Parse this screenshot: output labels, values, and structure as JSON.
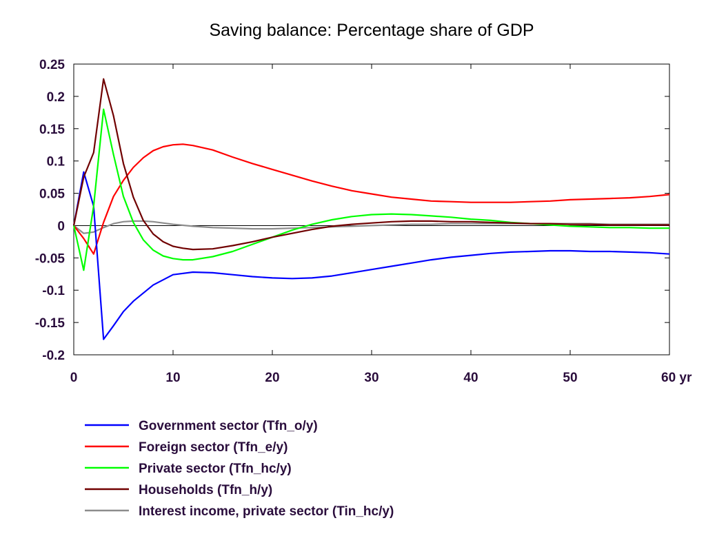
{
  "chart_data": {
    "type": "line",
    "title": "Saving balance: Percentage share of GDP",
    "xlabel": "",
    "ylabel": "",
    "xlim": [
      0,
      60
    ],
    "ylim": [
      -0.2,
      0.25
    ],
    "x_ticks": [
      {
        "value": 0,
        "label": "0"
      },
      {
        "value": 10,
        "label": "10"
      },
      {
        "value": 20,
        "label": "20"
      },
      {
        "value": 30,
        "label": "30"
      },
      {
        "value": 40,
        "label": "40"
      },
      {
        "value": 50,
        "label": "50"
      },
      {
        "value": 60,
        "label": "60 yr"
      }
    ],
    "y_ticks": [
      {
        "value": 0.25,
        "label": "0.25"
      },
      {
        "value": 0.2,
        "label": "0.2"
      },
      {
        "value": 0.15,
        "label": "0.15"
      },
      {
        "value": 0.1,
        "label": "0.1"
      },
      {
        "value": 0.05,
        "label": "0.05"
      },
      {
        "value": 0,
        "label": "0"
      },
      {
        "value": -0.05,
        "label": "-0.05"
      },
      {
        "value": -0.1,
        "label": "-0.1"
      },
      {
        "value": -0.15,
        "label": "-0.15"
      },
      {
        "value": -0.2,
        "label": "-0.2"
      }
    ],
    "zero_line": true,
    "grid": false,
    "legend_position": "bottom",
    "series": [
      {
        "name": "Government sector (Tfn_o/y)",
        "color": "#0000ff",
        "points": [
          [
            0,
            0
          ],
          [
            1,
            0.083
          ],
          [
            2,
            0.03
          ],
          [
            3,
            -0.176
          ],
          [
            4,
            -0.155
          ],
          [
            5,
            -0.133
          ],
          [
            6,
            -0.117
          ],
          [
            8,
            -0.092
          ],
          [
            10,
            -0.076
          ],
          [
            12,
            -0.072
          ],
          [
            14,
            -0.073
          ],
          [
            16,
            -0.076
          ],
          [
            18,
            -0.079
          ],
          [
            20,
            -0.081
          ],
          [
            22,
            -0.082
          ],
          [
            24,
            -0.081
          ],
          [
            26,
            -0.078
          ],
          [
            28,
            -0.073
          ],
          [
            30,
            -0.068
          ],
          [
            32,
            -0.063
          ],
          [
            34,
            -0.058
          ],
          [
            36,
            -0.053
          ],
          [
            38,
            -0.049
          ],
          [
            40,
            -0.046
          ],
          [
            42,
            -0.043
          ],
          [
            44,
            -0.041
          ],
          [
            46,
            -0.04
          ],
          [
            48,
            -0.039
          ],
          [
            50,
            -0.039
          ],
          [
            52,
            -0.04
          ],
          [
            54,
            -0.04
          ],
          [
            56,
            -0.041
          ],
          [
            58,
            -0.042
          ],
          [
            60,
            -0.044
          ]
        ]
      },
      {
        "name": "Foreign sector (Tfn_e/y)",
        "color": "#ff0000",
        "points": [
          [
            0,
            0
          ],
          [
            1,
            -0.02
          ],
          [
            2,
            -0.044
          ],
          [
            3,
            0.005
          ],
          [
            4,
            0.045
          ],
          [
            5,
            0.07
          ],
          [
            6,
            0.09
          ],
          [
            7,
            0.105
          ],
          [
            8,
            0.116
          ],
          [
            9,
            0.122
          ],
          [
            10,
            0.125
          ],
          [
            11,
            0.126
          ],
          [
            12,
            0.124
          ],
          [
            14,
            0.117
          ],
          [
            16,
            0.106
          ],
          [
            18,
            0.096
          ],
          [
            20,
            0.087
          ],
          [
            22,
            0.078
          ],
          [
            24,
            0.069
          ],
          [
            26,
            0.061
          ],
          [
            28,
            0.054
          ],
          [
            30,
            0.049
          ],
          [
            32,
            0.044
          ],
          [
            34,
            0.041
          ],
          [
            36,
            0.038
          ],
          [
            38,
            0.037
          ],
          [
            40,
            0.036
          ],
          [
            42,
            0.036
          ],
          [
            44,
            0.036
          ],
          [
            46,
            0.037
          ],
          [
            48,
            0.038
          ],
          [
            50,
            0.04
          ],
          [
            52,
            0.041
          ],
          [
            54,
            0.042
          ],
          [
            56,
            0.043
          ],
          [
            58,
            0.045
          ],
          [
            60,
            0.048
          ]
        ]
      },
      {
        "name": "Private sector (Tfn_hc/y)",
        "color": "#00ff00",
        "points": [
          [
            0,
            0
          ],
          [
            1,
            -0.069
          ],
          [
            2,
            0.03
          ],
          [
            3,
            0.18
          ],
          [
            4,
            0.11
          ],
          [
            5,
            0.045
          ],
          [
            6,
            0.005
          ],
          [
            7,
            -0.022
          ],
          [
            8,
            -0.038
          ],
          [
            9,
            -0.047
          ],
          [
            10,
            -0.051
          ],
          [
            11,
            -0.053
          ],
          [
            12,
            -0.053
          ],
          [
            14,
            -0.048
          ],
          [
            16,
            -0.04
          ],
          [
            18,
            -0.029
          ],
          [
            20,
            -0.018
          ],
          [
            22,
            -0.007
          ],
          [
            24,
            0.002
          ],
          [
            26,
            0.009
          ],
          [
            28,
            0.014
          ],
          [
            30,
            0.017
          ],
          [
            32,
            0.018
          ],
          [
            34,
            0.017
          ],
          [
            36,
            0.015
          ],
          [
            38,
            0.013
          ],
          [
            40,
            0.01
          ],
          [
            42,
            0.008
          ],
          [
            44,
            0.005
          ],
          [
            46,
            0.003
          ],
          [
            48,
            0.001
          ],
          [
            50,
            -0.001
          ],
          [
            52,
            -0.002
          ],
          [
            54,
            -0.003
          ],
          [
            56,
            -0.003
          ],
          [
            58,
            -0.004
          ],
          [
            60,
            -0.004
          ]
        ]
      },
      {
        "name": "Households (Tfn_h/y)",
        "color": "#700000",
        "points": [
          [
            0,
            0
          ],
          [
            1,
            0.075
          ],
          [
            2,
            0.113
          ],
          [
            3,
            0.227
          ],
          [
            4,
            0.17
          ],
          [
            5,
            0.096
          ],
          [
            6,
            0.044
          ],
          [
            7,
            0.008
          ],
          [
            8,
            -0.013
          ],
          [
            9,
            -0.025
          ],
          [
            10,
            -0.032
          ],
          [
            11,
            -0.035
          ],
          [
            12,
            -0.037
          ],
          [
            14,
            -0.036
          ],
          [
            16,
            -0.031
          ],
          [
            18,
            -0.025
          ],
          [
            20,
            -0.018
          ],
          [
            22,
            -0.012
          ],
          [
            24,
            -0.006
          ],
          [
            26,
            -0.001
          ],
          [
            28,
            0.002
          ],
          [
            30,
            0.004
          ],
          [
            32,
            0.006
          ],
          [
            34,
            0.007
          ],
          [
            36,
            0.007
          ],
          [
            38,
            0.006
          ],
          [
            40,
            0.006
          ],
          [
            42,
            0.005
          ],
          [
            44,
            0.004
          ],
          [
            46,
            0.003
          ],
          [
            48,
            0.003
          ],
          [
            50,
            0.002
          ],
          [
            52,
            0.002
          ],
          [
            54,
            0.001
          ],
          [
            56,
            0.001
          ],
          [
            58,
            0.001
          ],
          [
            60,
            0.001
          ]
        ]
      },
      {
        "name": "Interest income, private sector (Tin_hc/y)",
        "color": "#8c8c8c",
        "points": [
          [
            0,
            0
          ],
          [
            1,
            -0.012
          ],
          [
            2,
            -0.01
          ],
          [
            3,
            -0.003
          ],
          [
            4,
            0.003
          ],
          [
            5,
            0.006
          ],
          [
            6,
            0.007
          ],
          [
            7,
            0.007
          ],
          [
            8,
            0.006
          ],
          [
            9,
            0.004
          ],
          [
            10,
            0.002
          ],
          [
            12,
            -0.001
          ],
          [
            14,
            -0.003
          ],
          [
            16,
            -0.004
          ],
          [
            18,
            -0.005
          ],
          [
            20,
            -0.005
          ],
          [
            22,
            -0.004
          ],
          [
            24,
            -0.003
          ],
          [
            26,
            -0.002
          ],
          [
            28,
            -0.001
          ],
          [
            30,
            0.0
          ],
          [
            32,
            0.001
          ],
          [
            34,
            0.002
          ],
          [
            36,
            0.002
          ],
          [
            38,
            0.003
          ],
          [
            40,
            0.003
          ],
          [
            42,
            0.003
          ],
          [
            44,
            0.003
          ],
          [
            46,
            0.003
          ],
          [
            48,
            0.003
          ],
          [
            50,
            0.003
          ],
          [
            52,
            0.003
          ],
          [
            54,
            0.002
          ],
          [
            56,
            0.002
          ],
          [
            58,
            0.002
          ],
          [
            60,
            0.002
          ]
        ]
      }
    ]
  }
}
